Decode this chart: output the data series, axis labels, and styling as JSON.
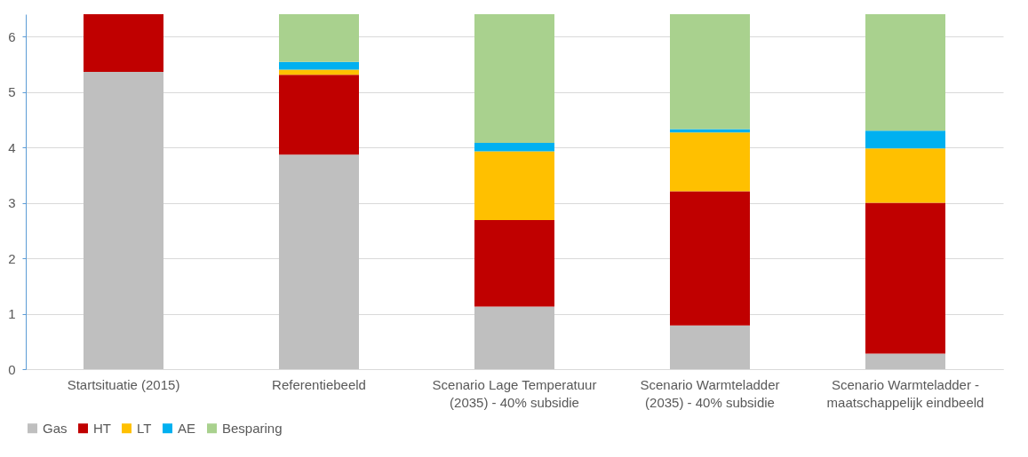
{
  "chart_data": {
    "type": "bar",
    "stacked": true,
    "categories": [
      "Startsituatie (2015)",
      "Referentiebeeld",
      "Scenario Lage Temperatuur (2035) - 40% subsidie",
      "Scenario Warmteladder (2035) - 40% subsidie",
      "Scenario Warmteladder - maatschappelijk eindbeeld"
    ],
    "series": [
      {
        "name": "Gas",
        "color": "#bfbfbf",
        "values": [
          5.36,
          3.87,
          1.13,
          0.79,
          0.28
        ]
      },
      {
        "name": "HT",
        "color": "#c00000",
        "values": [
          1.04,
          1.44,
          1.56,
          2.42,
          2.72
        ]
      },
      {
        "name": "LT",
        "color": "#ffc000",
        "values": [
          null,
          0.09,
          1.24,
          1.06,
          0.98
        ]
      },
      {
        "name": "AE",
        "color": "#00b0f0",
        "values": [
          null,
          0.14,
          0.15,
          0.06,
          0.32
        ]
      },
      {
        "name": "Besparing",
        "color": "#a9d18e",
        "values": [
          null,
          0.86,
          2.32,
          2.07,
          2.1
        ]
      }
    ],
    "ylim": [
      0,
      6.4
    ],
    "yticks": [
      0,
      1,
      2,
      3,
      4,
      5,
      6
    ],
    "grid": "y",
    "legend": "bottom"
  }
}
